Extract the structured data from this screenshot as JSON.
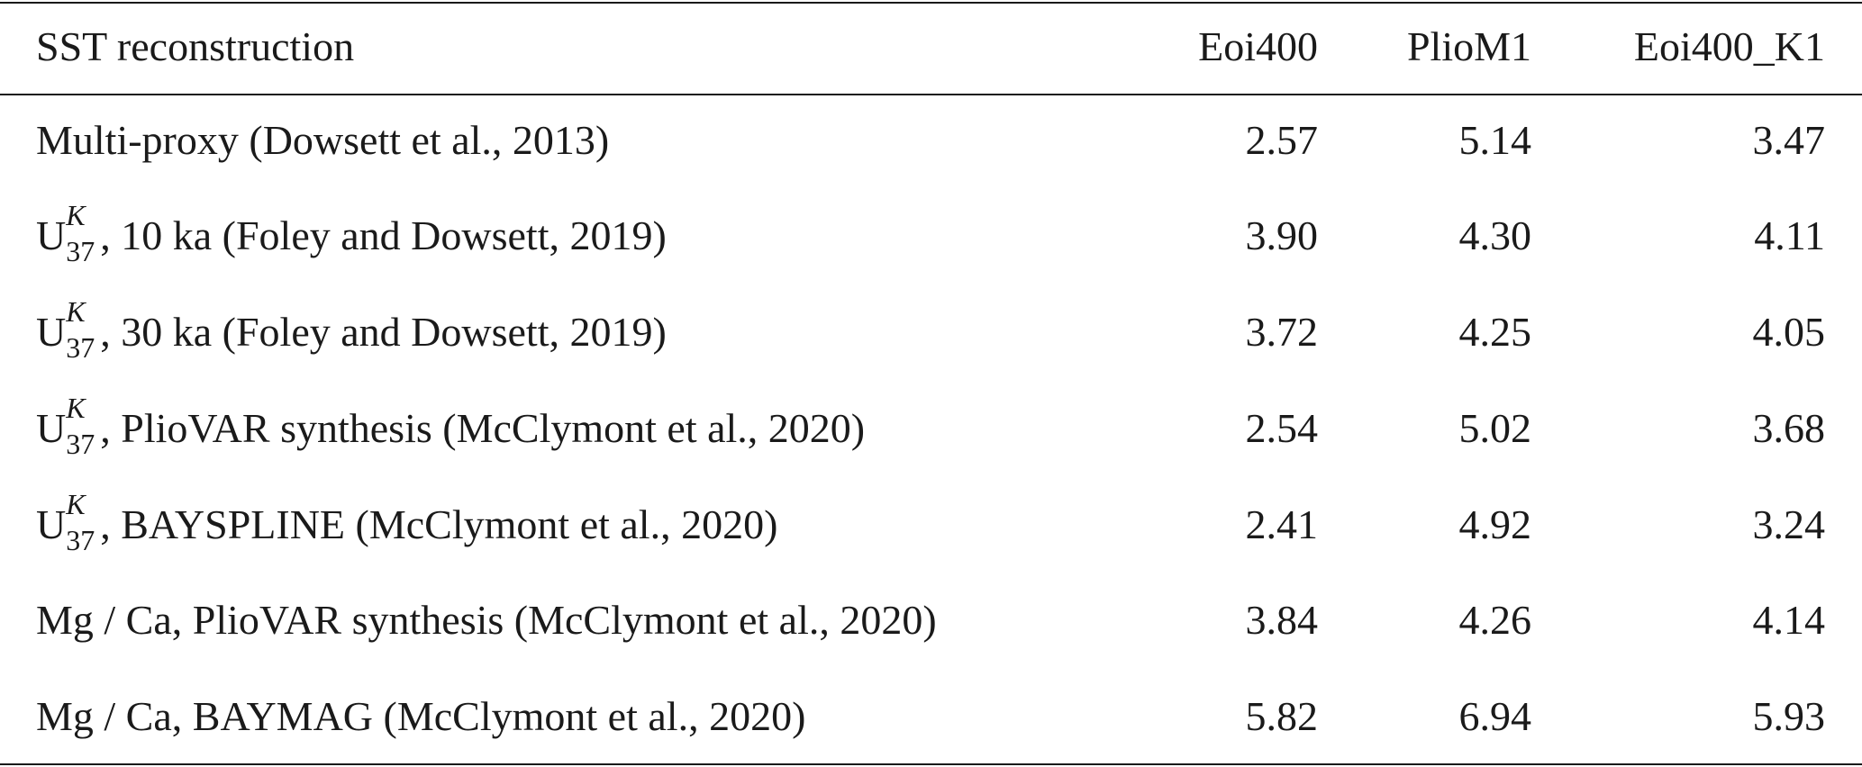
{
  "table": {
    "header": [
      "SST reconstruction",
      "Eoi400",
      "PlioM1",
      "Eoi400_K1"
    ],
    "rows": [
      {
        "label": "Multi-proxy (Dowsett et al., 2013)",
        "values": [
          "2.57",
          "5.14",
          "3.47"
        ]
      },
      {
        "label": {
          "base": "U",
          "sup": "K",
          "sub": "37",
          "text": ", 10 ka (Foley and Dowsett, 2019)"
        },
        "values": [
          "3.90",
          "4.30",
          "4.11"
        ]
      },
      {
        "label": {
          "base": "U",
          "sup": "K",
          "sub": "37",
          "text": ", 30 ka (Foley and Dowsett, 2019)"
        },
        "values": [
          "3.72",
          "4.25",
          "4.05"
        ]
      },
      {
        "label": {
          "base": "U",
          "sup": "K",
          "sub": "37",
          "text": ", PlioVAR synthesis (McClymont et al., 2020)"
        },
        "values": [
          "2.54",
          "5.02",
          "3.68"
        ]
      },
      {
        "label": {
          "base": "U",
          "sup": "K",
          "sub": "37",
          "text": ", BAYSPLINE (McClymont et al., 2020)"
        },
        "values": [
          "2.41",
          "4.92",
          "3.24"
        ]
      },
      {
        "label": "Mg / Ca, PlioVAR synthesis (McClymont et al., 2020)",
        "values": [
          "3.84",
          "4.26",
          "4.14"
        ]
      },
      {
        "label": "Mg / Ca, BAYMAG (McClymont et al., 2020)",
        "values": [
          "5.82",
          "6.94",
          "5.93"
        ]
      }
    ]
  }
}
